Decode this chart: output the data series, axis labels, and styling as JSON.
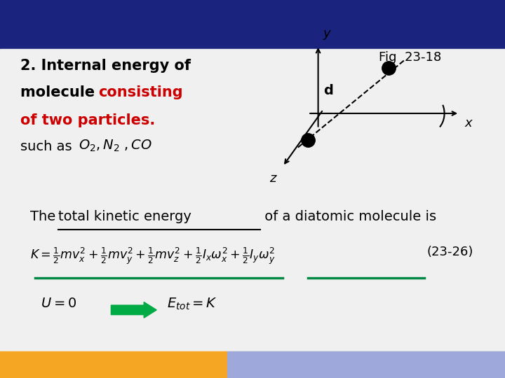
{
  "bg_top_color": "#1a237e",
  "bg_main_color": "#f0f0f0",
  "bg_bottom_left_color": "#f5a623",
  "bg_bottom_right_color": "#9fa8da",
  "top_bar_height": 0.13,
  "bottom_bar_height": 0.07,
  "title_line1": "2. Internal energy of",
  "title_line2_black": "molecule ",
  "title_line2_red": "consisting",
  "title_line3_red": "of two particles",
  "title_line3_dot": ".",
  "title_line4": "such as ",
  "fig_label": "Fig  23-18",
  "sentence_normal": "The ",
  "sentence_underline": "total kinetic energy",
  "sentence_end": " of a diatomic molecule is",
  "formula_tag": "(23-26)",
  "text_color": "#000000",
  "red_color": "#cc0000",
  "green_arrow_color": "#00aa44",
  "green_underline_color": "#008844"
}
